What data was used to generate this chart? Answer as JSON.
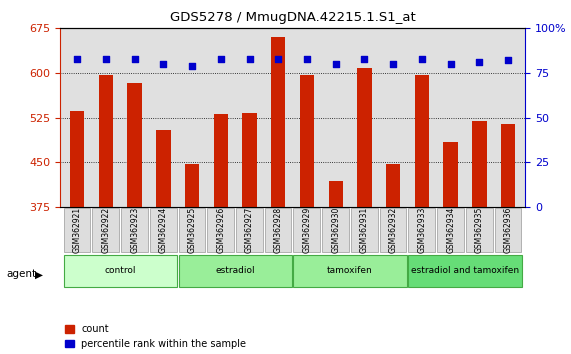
{
  "title": "GDS5278 / MmugDNA.42215.1.S1_at",
  "samples": [
    "GSM362921",
    "GSM362922",
    "GSM362923",
    "GSM362924",
    "GSM362925",
    "GSM362926",
    "GSM362927",
    "GSM362928",
    "GSM362929",
    "GSM362930",
    "GSM362931",
    "GSM362932",
    "GSM362933",
    "GSM362934",
    "GSM362935",
    "GSM362936"
  ],
  "counts": [
    537,
    597,
    584,
    505,
    447,
    532,
    533,
    660,
    597,
    418,
    608,
    447,
    597,
    485,
    520,
    515
  ],
  "percentiles": [
    83,
    83,
    83,
    80,
    79,
    83,
    83,
    83,
    83,
    80,
    83,
    80,
    83,
    80,
    81,
    82
  ],
  "groups": [
    {
      "label": "control",
      "start": 0,
      "end": 3
    },
    {
      "label": "estradiol",
      "start": 4,
      "end": 7
    },
    {
      "label": "tamoxifen",
      "start": 8,
      "end": 11
    },
    {
      "label": "estradiol and tamoxifen",
      "start": 12,
      "end": 15
    }
  ],
  "group_colors": [
    "#ccffcc",
    "#99ee99",
    "#99ee99",
    "#66dd77"
  ],
  "ylim_left": [
    375,
    675
  ],
  "ylim_right": [
    0,
    100
  ],
  "yticks_left": [
    375,
    450,
    525,
    600,
    675
  ],
  "yticks_right": [
    0,
    25,
    50,
    75,
    100
  ],
  "bar_color": "#cc2200",
  "dot_color": "#0000cc",
  "bar_width": 0.5,
  "plot_bg": "#e0e0e0",
  "label_bg": "#cccccc",
  "label_box_bg": "#dddddd"
}
